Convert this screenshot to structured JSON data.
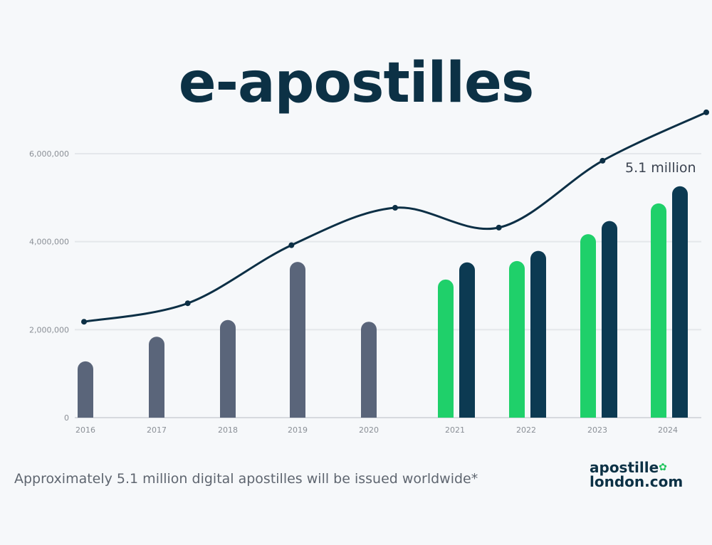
{
  "chart_data": {
    "type": "bar",
    "title": "e-apostilles",
    "categories": [
      "2016",
      "2017",
      "2018",
      "2019",
      "2020",
      "2021",
      "2022",
      "2023",
      "2024"
    ],
    "ylim": [
      0,
      6000000
    ],
    "yticks": [
      0,
      2000000,
      4000000,
      6000000
    ],
    "ytick_labels": [
      "0",
      "2,000,000",
      "4,000,000",
      "6,000,000"
    ],
    "grid": true,
    "series": [
      {
        "values": [
          1280000,
          1840000,
          2220000,
          3540000,
          2180000,
          null,
          null,
          null,
          null
        ],
        "color": "#5a657a"
      },
      {
        "values": [
          null,
          null,
          null,
          null,
          null,
          3140000,
          3560000,
          4170000,
          4870000
        ],
        "color": "#1fd06a"
      },
      {
        "values": [
          null,
          null,
          null,
          null,
          null,
          3530000,
          3790000,
          4470000,
          5260000
        ],
        "color": "#0c3a52"
      }
    ],
    "trend_line": {
      "values": [
        2180000,
        2600000,
        3920000,
        4770000,
        4320000,
        5840000,
        6940000
      ],
      "color": "#0c2f45"
    },
    "annotation": "5.1 million"
  },
  "caption": "Approximately 5.1 million digital apostilles will be issued worldwide*",
  "logo": {
    "line1": "apostille",
    "line2": "london.com"
  }
}
